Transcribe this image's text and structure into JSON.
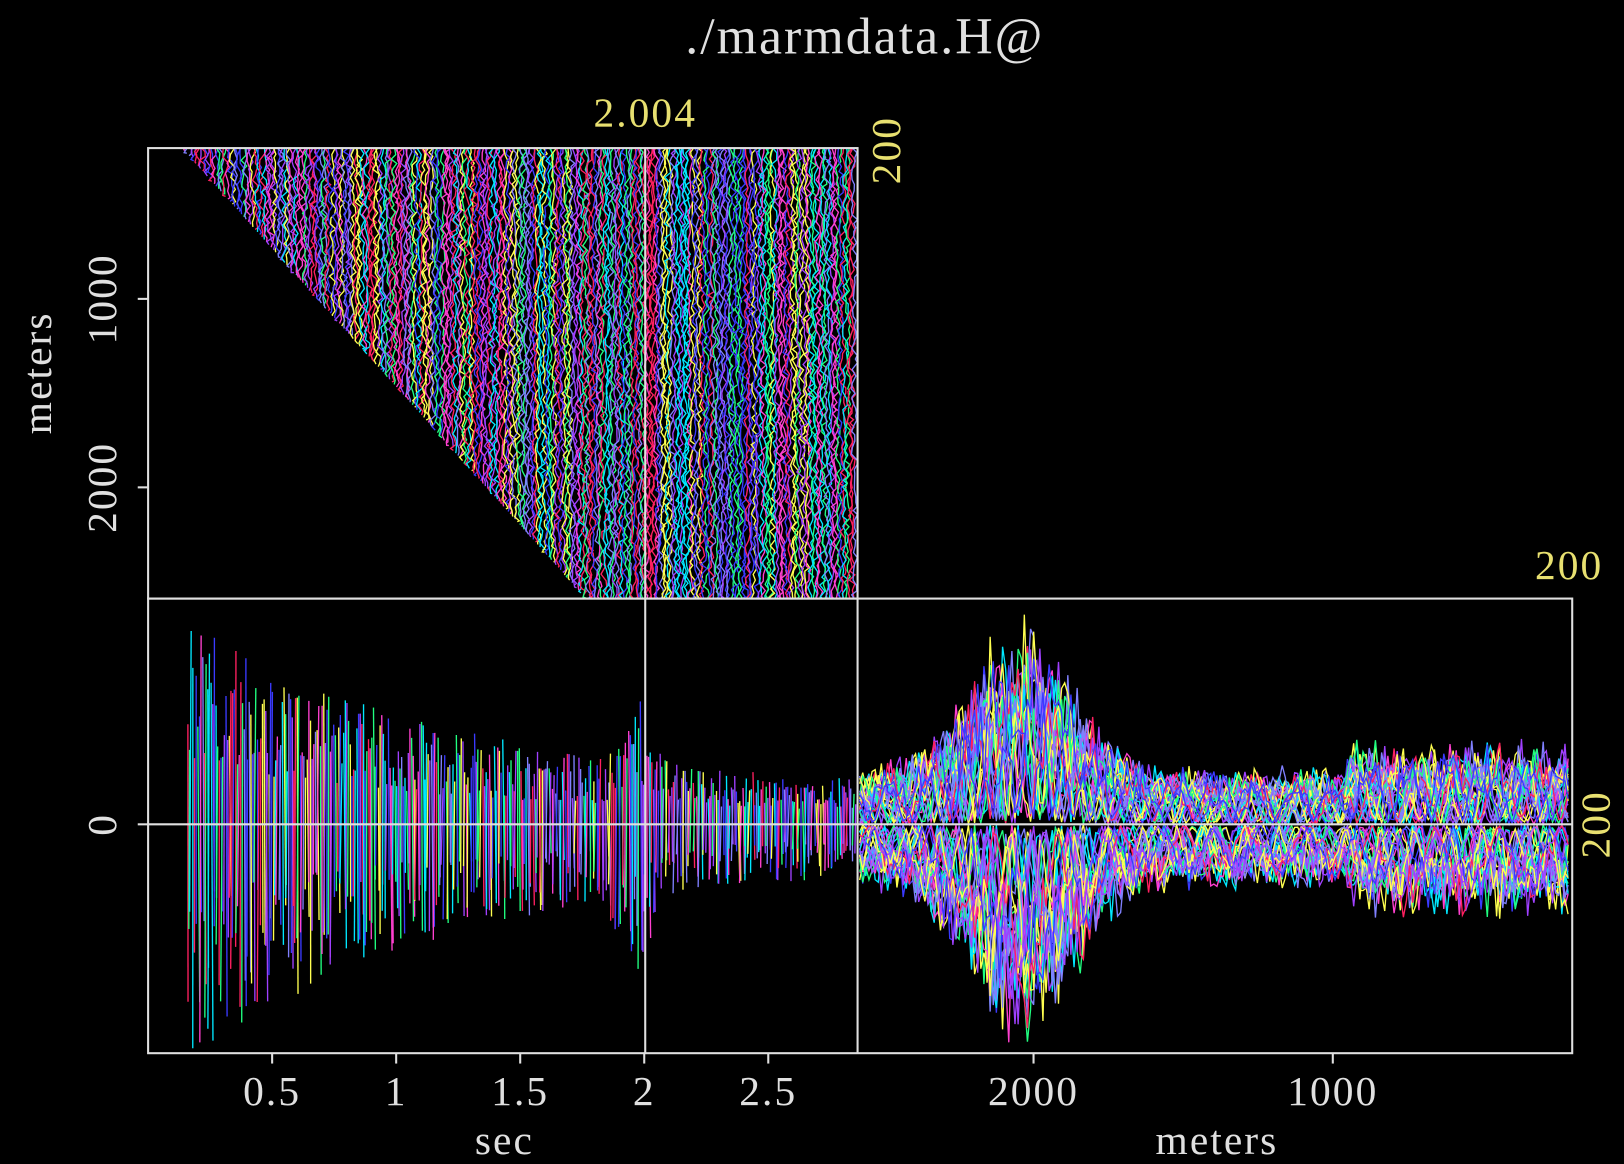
{
  "chart_data": {
    "type": "cube",
    "title": "./marmdata.H@",
    "time_axis": {
      "label": "sec",
      "lim": [
        0,
        2.86
      ],
      "ticks": [
        0.5,
        1,
        1.5,
        2,
        2.5
      ]
    },
    "offset_axis": {
      "label": "meters",
      "lim": [
        200,
        2590
      ],
      "ticks": [
        1000,
        2000
      ]
    },
    "midpoint_axis": {
      "label": "meters",
      "lim": [
        2588,
        200
      ],
      "ticks": [
        2000,
        1000
      ]
    },
    "amplitude_ticks": [
      0
    ],
    "frame_labels": [
      2.004,
      200,
      200,
      200
    ],
    "trace_colors": [
      "#ff2060",
      "#3a3aff",
      "#20ff80",
      "#00e8ff",
      "#ffff50",
      "#a040ff",
      "#ff40d0",
      "#8080ff"
    ],
    "frame_color": "#e8e070",
    "axis_color": "#e0e0e0"
  }
}
